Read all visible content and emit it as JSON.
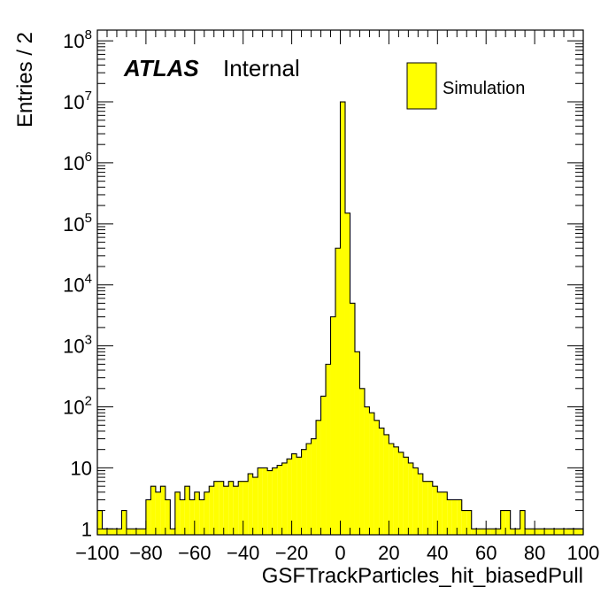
{
  "chart_data": {
    "type": "histogram",
    "xlabel": "GSFTrackParticles_hit_biasedPull",
    "ylabel": "Entries / 2",
    "xlim": [
      -100,
      100
    ],
    "ylim": [
      0.8,
      150000000
    ],
    "yscale": "log",
    "bin_width": 2,
    "fill_color": "#ffff00",
    "line_color": "#000000",
    "x_ticks": [
      -100,
      -80,
      -60,
      -40,
      -20,
      0,
      20,
      40,
      60,
      80,
      100
    ],
    "x_tick_labels": [
      "−100",
      "−80",
      "−60",
      "−40",
      "−20",
      "0",
      "20",
      "40",
      "60",
      "80",
      "100"
    ],
    "y_major_ticks": [
      {
        "value": 1,
        "base": "1",
        "exp": ""
      },
      {
        "value": 10,
        "base": "10",
        "exp": ""
      },
      {
        "value": 100,
        "base": "10",
        "exp": "2"
      },
      {
        "value": 1000,
        "base": "10",
        "exp": "3"
      },
      {
        "value": 10000,
        "base": "10",
        "exp": "4"
      },
      {
        "value": 100000,
        "base": "10",
        "exp": "5"
      },
      {
        "value": 1000000,
        "base": "10",
        "exp": "6"
      },
      {
        "value": 10000000,
        "base": "10",
        "exp": "7"
      },
      {
        "value": 100000000,
        "base": "10",
        "exp": "8"
      }
    ],
    "atlas_label": "ATLAS",
    "atlas_sublabel": "Internal",
    "legend": [
      {
        "name": "Simulation",
        "color": "#ffff00"
      }
    ],
    "legend_position": "top-right",
    "series": [
      {
        "name": "Simulation",
        "x": [
          -99,
          -97,
          -95,
          -93,
          -91,
          -89,
          -87,
          -85,
          -83,
          -81,
          -79,
          -77,
          -75,
          -73,
          -71,
          -69,
          -67,
          -65,
          -63,
          -61,
          -59,
          -57,
          -55,
          -53,
          -51,
          -49,
          -47,
          -45,
          -43,
          -41,
          -39,
          -37,
          -35,
          -33,
          -31,
          -29,
          -27,
          -25,
          -23,
          -21,
          -19,
          -17,
          -15,
          -13,
          -11,
          -9,
          -7,
          -5,
          -3,
          -1,
          1,
          3,
          5,
          7,
          9,
          11,
          13,
          15,
          17,
          19,
          21,
          23,
          25,
          27,
          29,
          31,
          33,
          35,
          37,
          39,
          41,
          43,
          45,
          47,
          49,
          51,
          53,
          55,
          57,
          59,
          61,
          63,
          65,
          67,
          69,
          71,
          73,
          75,
          77,
          79,
          81,
          83,
          85,
          87,
          89,
          91,
          93,
          95,
          97,
          99
        ],
        "values": [
          2,
          1,
          1,
          1,
          1,
          2,
          1,
          1,
          1,
          1,
          3,
          5,
          4,
          5,
          3,
          1,
          4,
          3,
          5,
          3,
          4,
          3,
          4,
          5,
          6,
          6,
          5,
          6,
          5,
          6,
          6,
          8,
          7,
          10,
          10,
          9,
          10,
          11,
          12,
          14,
          17,
          15,
          20,
          25,
          30,
          60,
          150,
          500,
          3000,
          40000,
          10000000,
          150000,
          5000,
          800,
          200,
          100,
          80,
          60,
          45,
          35,
          25,
          22,
          18,
          15,
          12,
          10,
          8,
          6,
          6,
          5,
          4,
          4,
          3,
          3,
          3,
          2,
          2,
          1,
          1,
          1,
          1,
          1,
          1,
          2,
          2,
          1,
          1,
          2,
          1,
          1,
          1,
          1,
          1,
          1,
          1,
          1,
          1,
          1,
          1,
          1
        ]
      }
    ]
  }
}
